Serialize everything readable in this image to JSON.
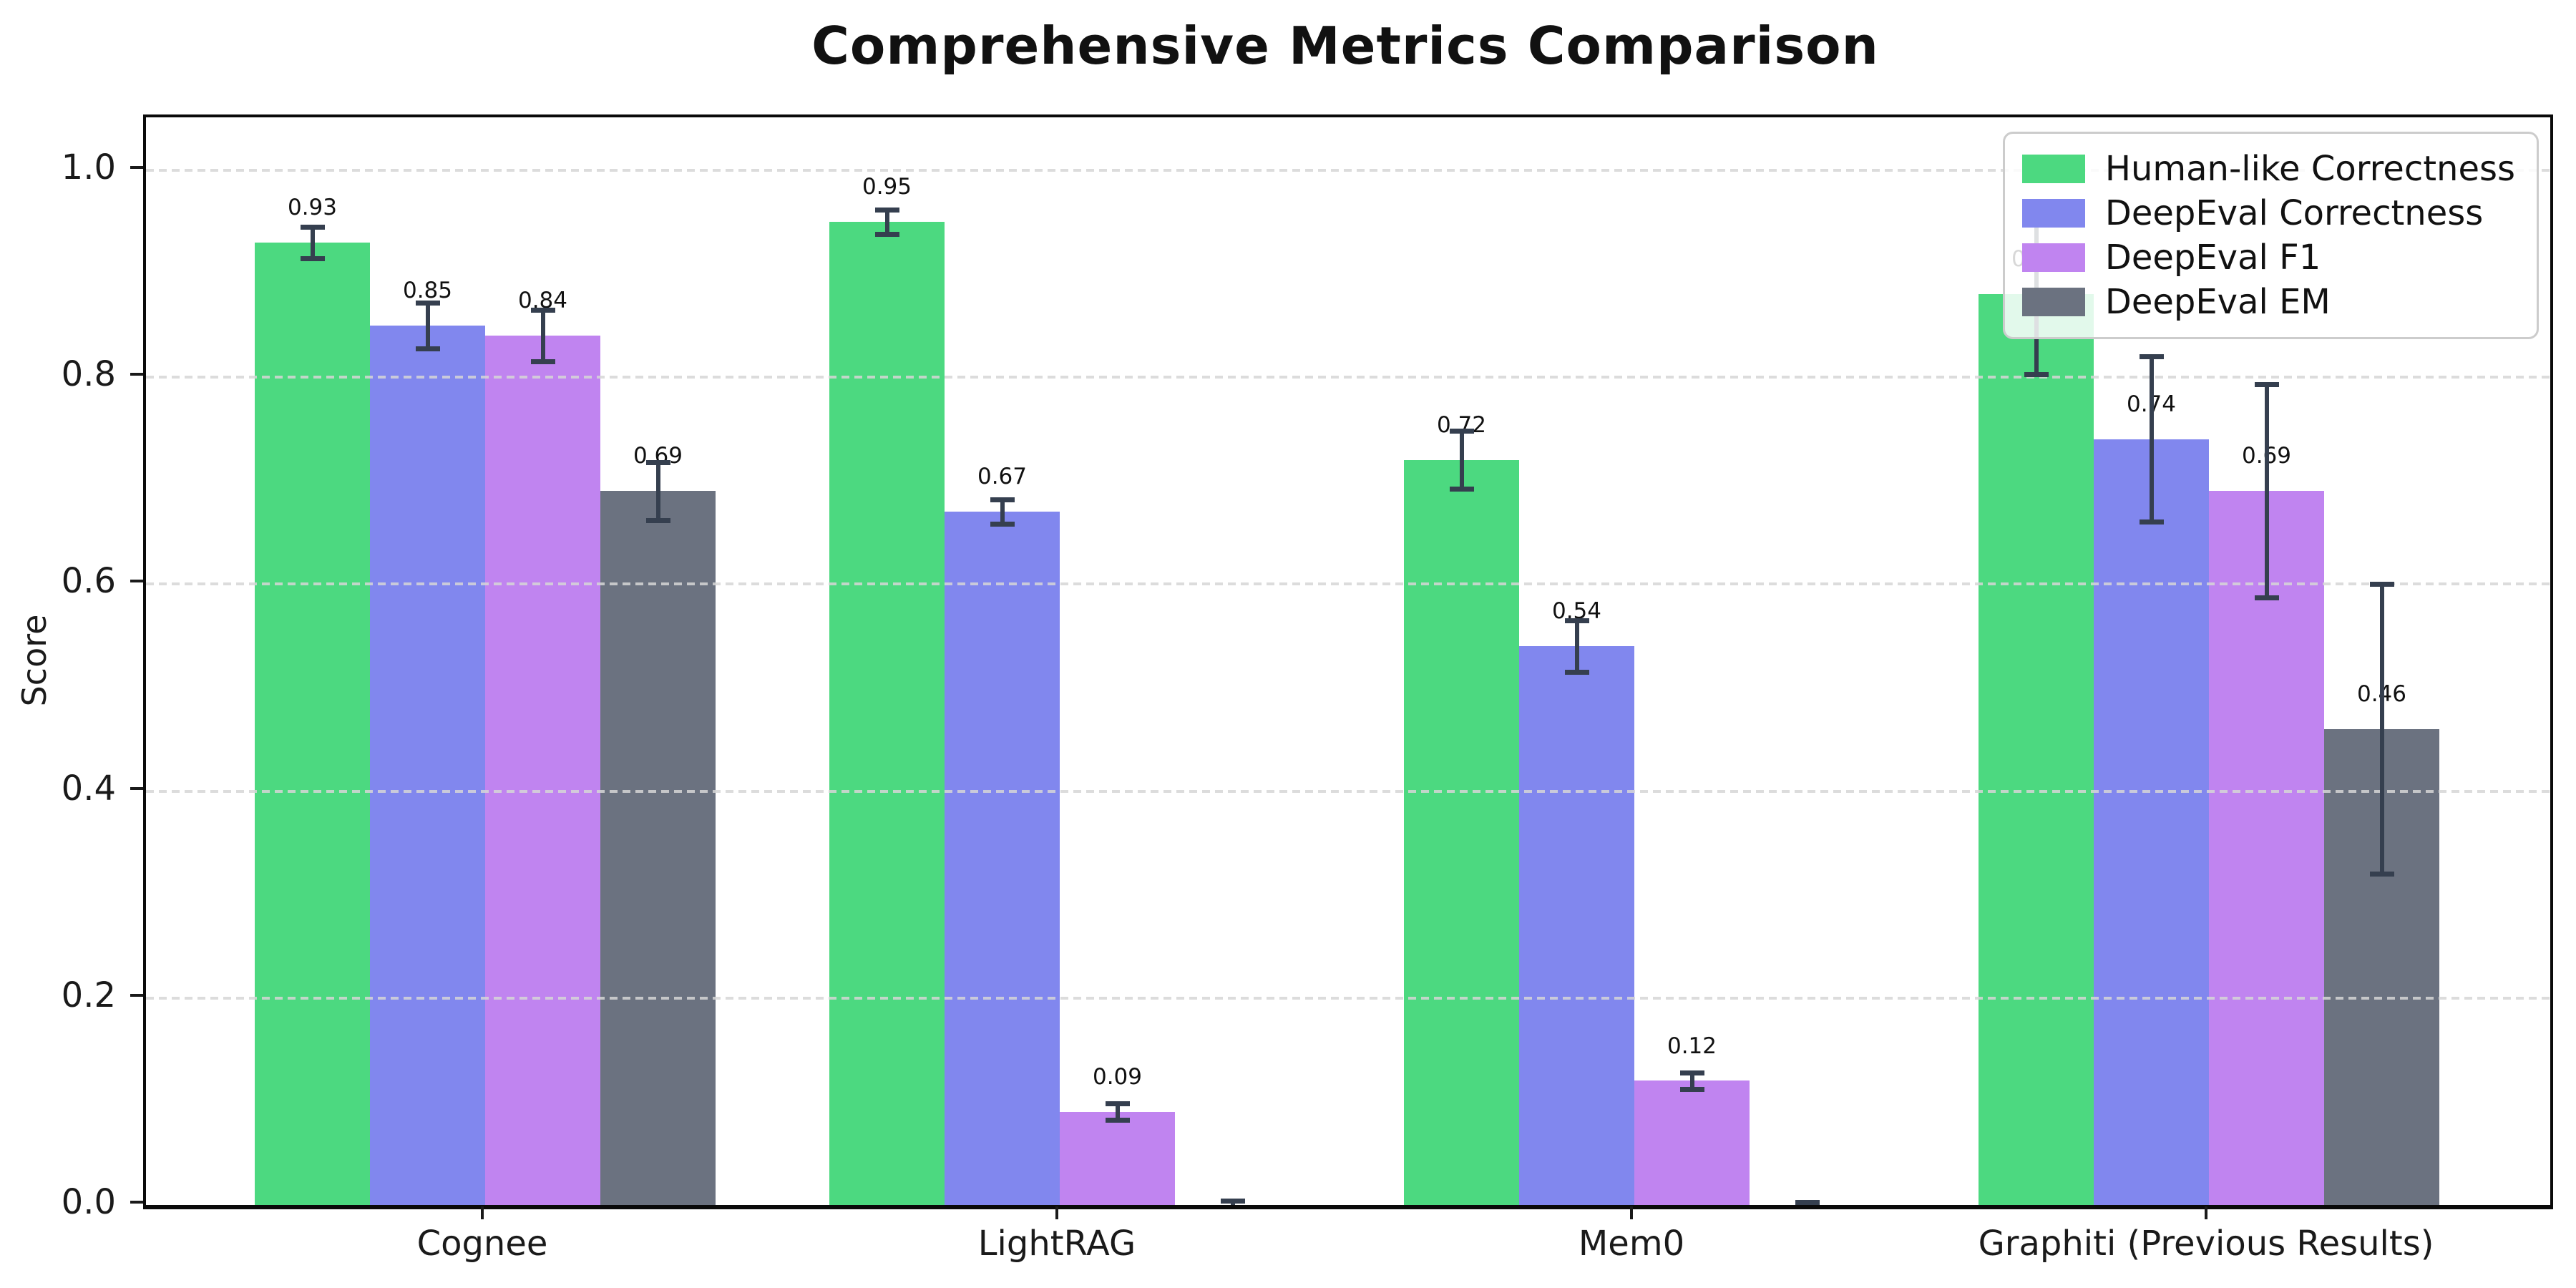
{
  "chart_data": {
    "type": "bar",
    "title": "Comprehensive Metrics Comparison",
    "xlabel": "",
    "ylabel": "Score",
    "categories": [
      "Cognee",
      "LightRAG",
      "Mem0",
      "Graphiti (Previous Results)"
    ],
    "series": [
      {
        "name": "Human-like Correctness",
        "color": "#4cd980",
        "values": [
          0.93,
          0.95,
          0.72,
          0.88
        ],
        "errors": [
          0.015,
          0.012,
          0.028,
          0.077
        ]
      },
      {
        "name": "DeepEval Correctness",
        "color": "#8187ee",
        "values": [
          0.85,
          0.67,
          0.54,
          0.74
        ],
        "errors": [
          0.022,
          0.012,
          0.025,
          0.08
        ]
      },
      {
        "name": "DeepEval F1",
        "color": "#c084f0",
        "values": [
          0.84,
          0.09,
          0.12,
          0.69
        ],
        "errors": [
          0.025,
          0.008,
          0.008,
          0.103
        ]
      },
      {
        "name": "DeepEval EM",
        "color": "#6b7280",
        "values": [
          0.69,
          0.0,
          0.0,
          0.46
        ],
        "errors": [
          0.028,
          0.004,
          0.003,
          0.14
        ]
      }
    ],
    "value_label_decimals": 2,
    "hide_label_when_zero": true,
    "yticks": [
      0.0,
      0.2,
      0.4,
      0.6,
      0.8,
      1.0
    ],
    "ylim": [
      0,
      1.051
    ],
    "grid": true,
    "grid_style": "dashed",
    "legend_position": "upper right",
    "bar_width_frac": 0.2,
    "error_bar_color": "#353f4f"
  }
}
